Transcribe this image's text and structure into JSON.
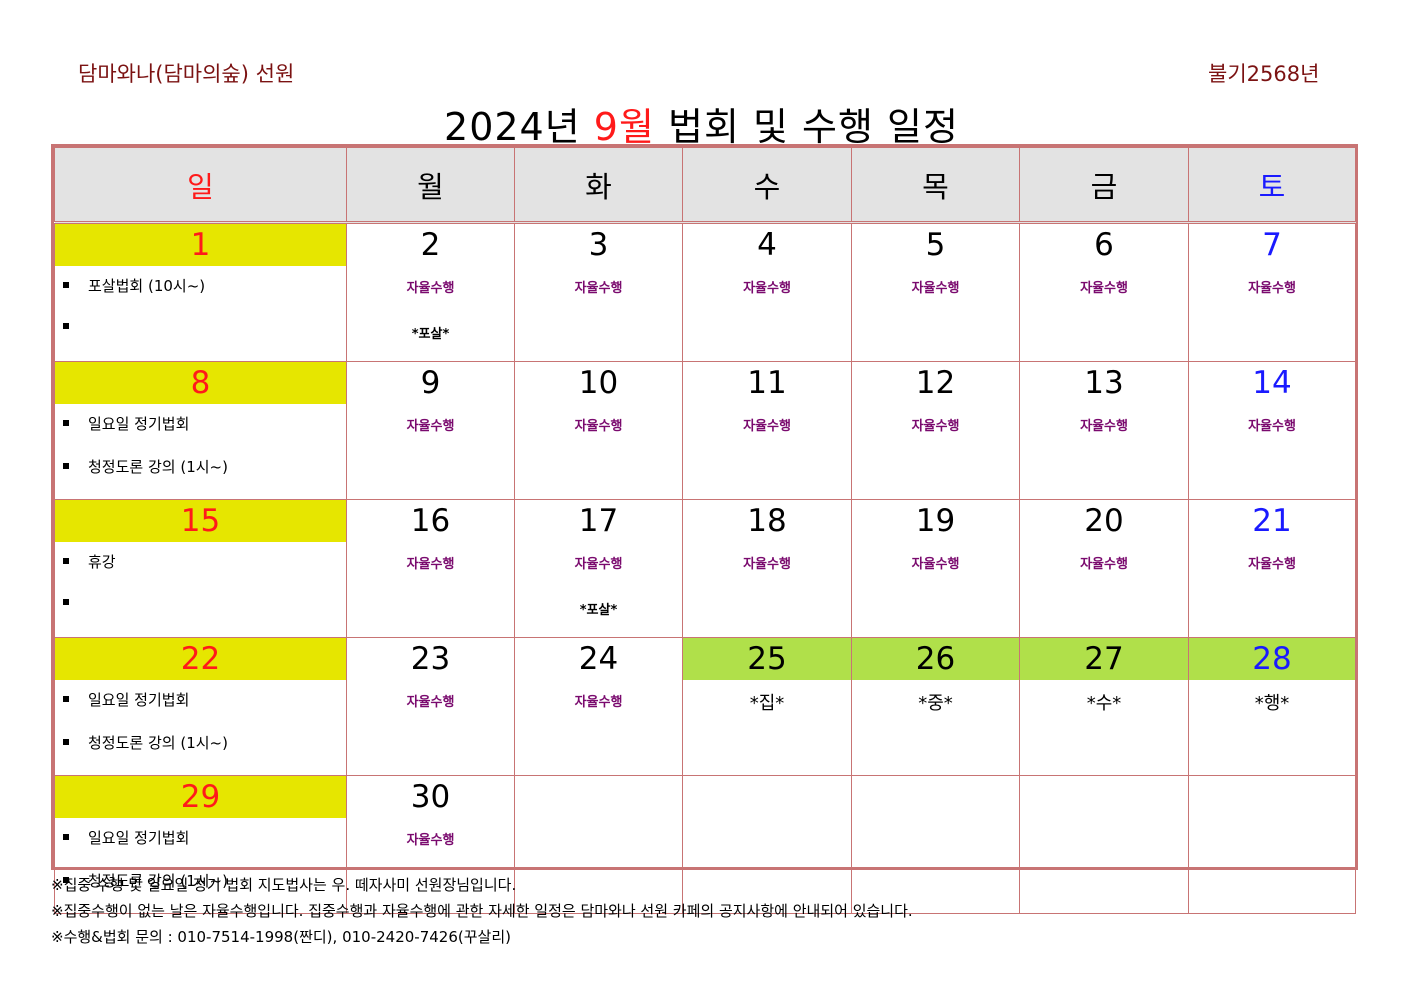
{
  "header": {
    "org": "담마와나(담마의숲) 선원",
    "era": "불기2568년",
    "title_pre": "2024년 ",
    "title_month": "9월",
    "title_post": " 법회 및 수행 일정"
  },
  "weekdays": [
    "일",
    "월",
    "화",
    "수",
    "목",
    "금",
    "토"
  ],
  "self_label": "자율수행",
  "posal_label": "*포살*",
  "weeks": [
    {
      "days": [
        "1",
        "2",
        "3",
        "4",
        "5",
        "6",
        "7"
      ],
      "sunday_events": [
        "포살법회 (10시~)",
        ""
      ]
    },
    {
      "days": [
        "8",
        "9",
        "10",
        "11",
        "12",
        "13",
        "14"
      ],
      "sunday_events": [
        "일요일 정기법회",
        "청정도론 강의 (1시~)"
      ]
    },
    {
      "days": [
        "15",
        "16",
        "17",
        "18",
        "19",
        "20",
        "21"
      ],
      "sunday_events": [
        "휴강",
        ""
      ]
    },
    {
      "days": [
        "22",
        "23",
        "24",
        "25",
        "26",
        "27",
        "28"
      ],
      "sunday_events": [
        "일요일 정기법회",
        "청정도론 강의 (1시~)"
      ],
      "retreat": [
        "*집*",
        "*중*",
        "*수*",
        "*행*"
      ]
    },
    {
      "days": [
        "29",
        "30",
        "",
        "",
        "",
        "",
        ""
      ],
      "sunday_events": [
        "일요일 정기법회",
        "청정도론 강의 (1시~)"
      ]
    }
  ],
  "notes": [
    "※집중 수행 및 일요일 정기 법회 지도법사는 우. 떼자사미 선원장님입니다.",
    "※집중수행이 없는 날은 자율수행입니다. 집중수행과 자율수행에 관한 자세한 일정은 담마와나 선원 카페의 공지사항에 안내되어 있습니다.",
    "※수행&법회 문의 : 010-7514-1998(짠디), 010-2420-7426(꾸살리)"
  ],
  "colors": {
    "border": "#c87474",
    "sunday_fill": "#e6e600",
    "retreat_fill": "#b0e04a",
    "sunday_text": "#ff1a1a",
    "saturday_text": "#1a1aff",
    "self_practice_text": "#7a0a6e",
    "header_text": "#7b1212"
  }
}
